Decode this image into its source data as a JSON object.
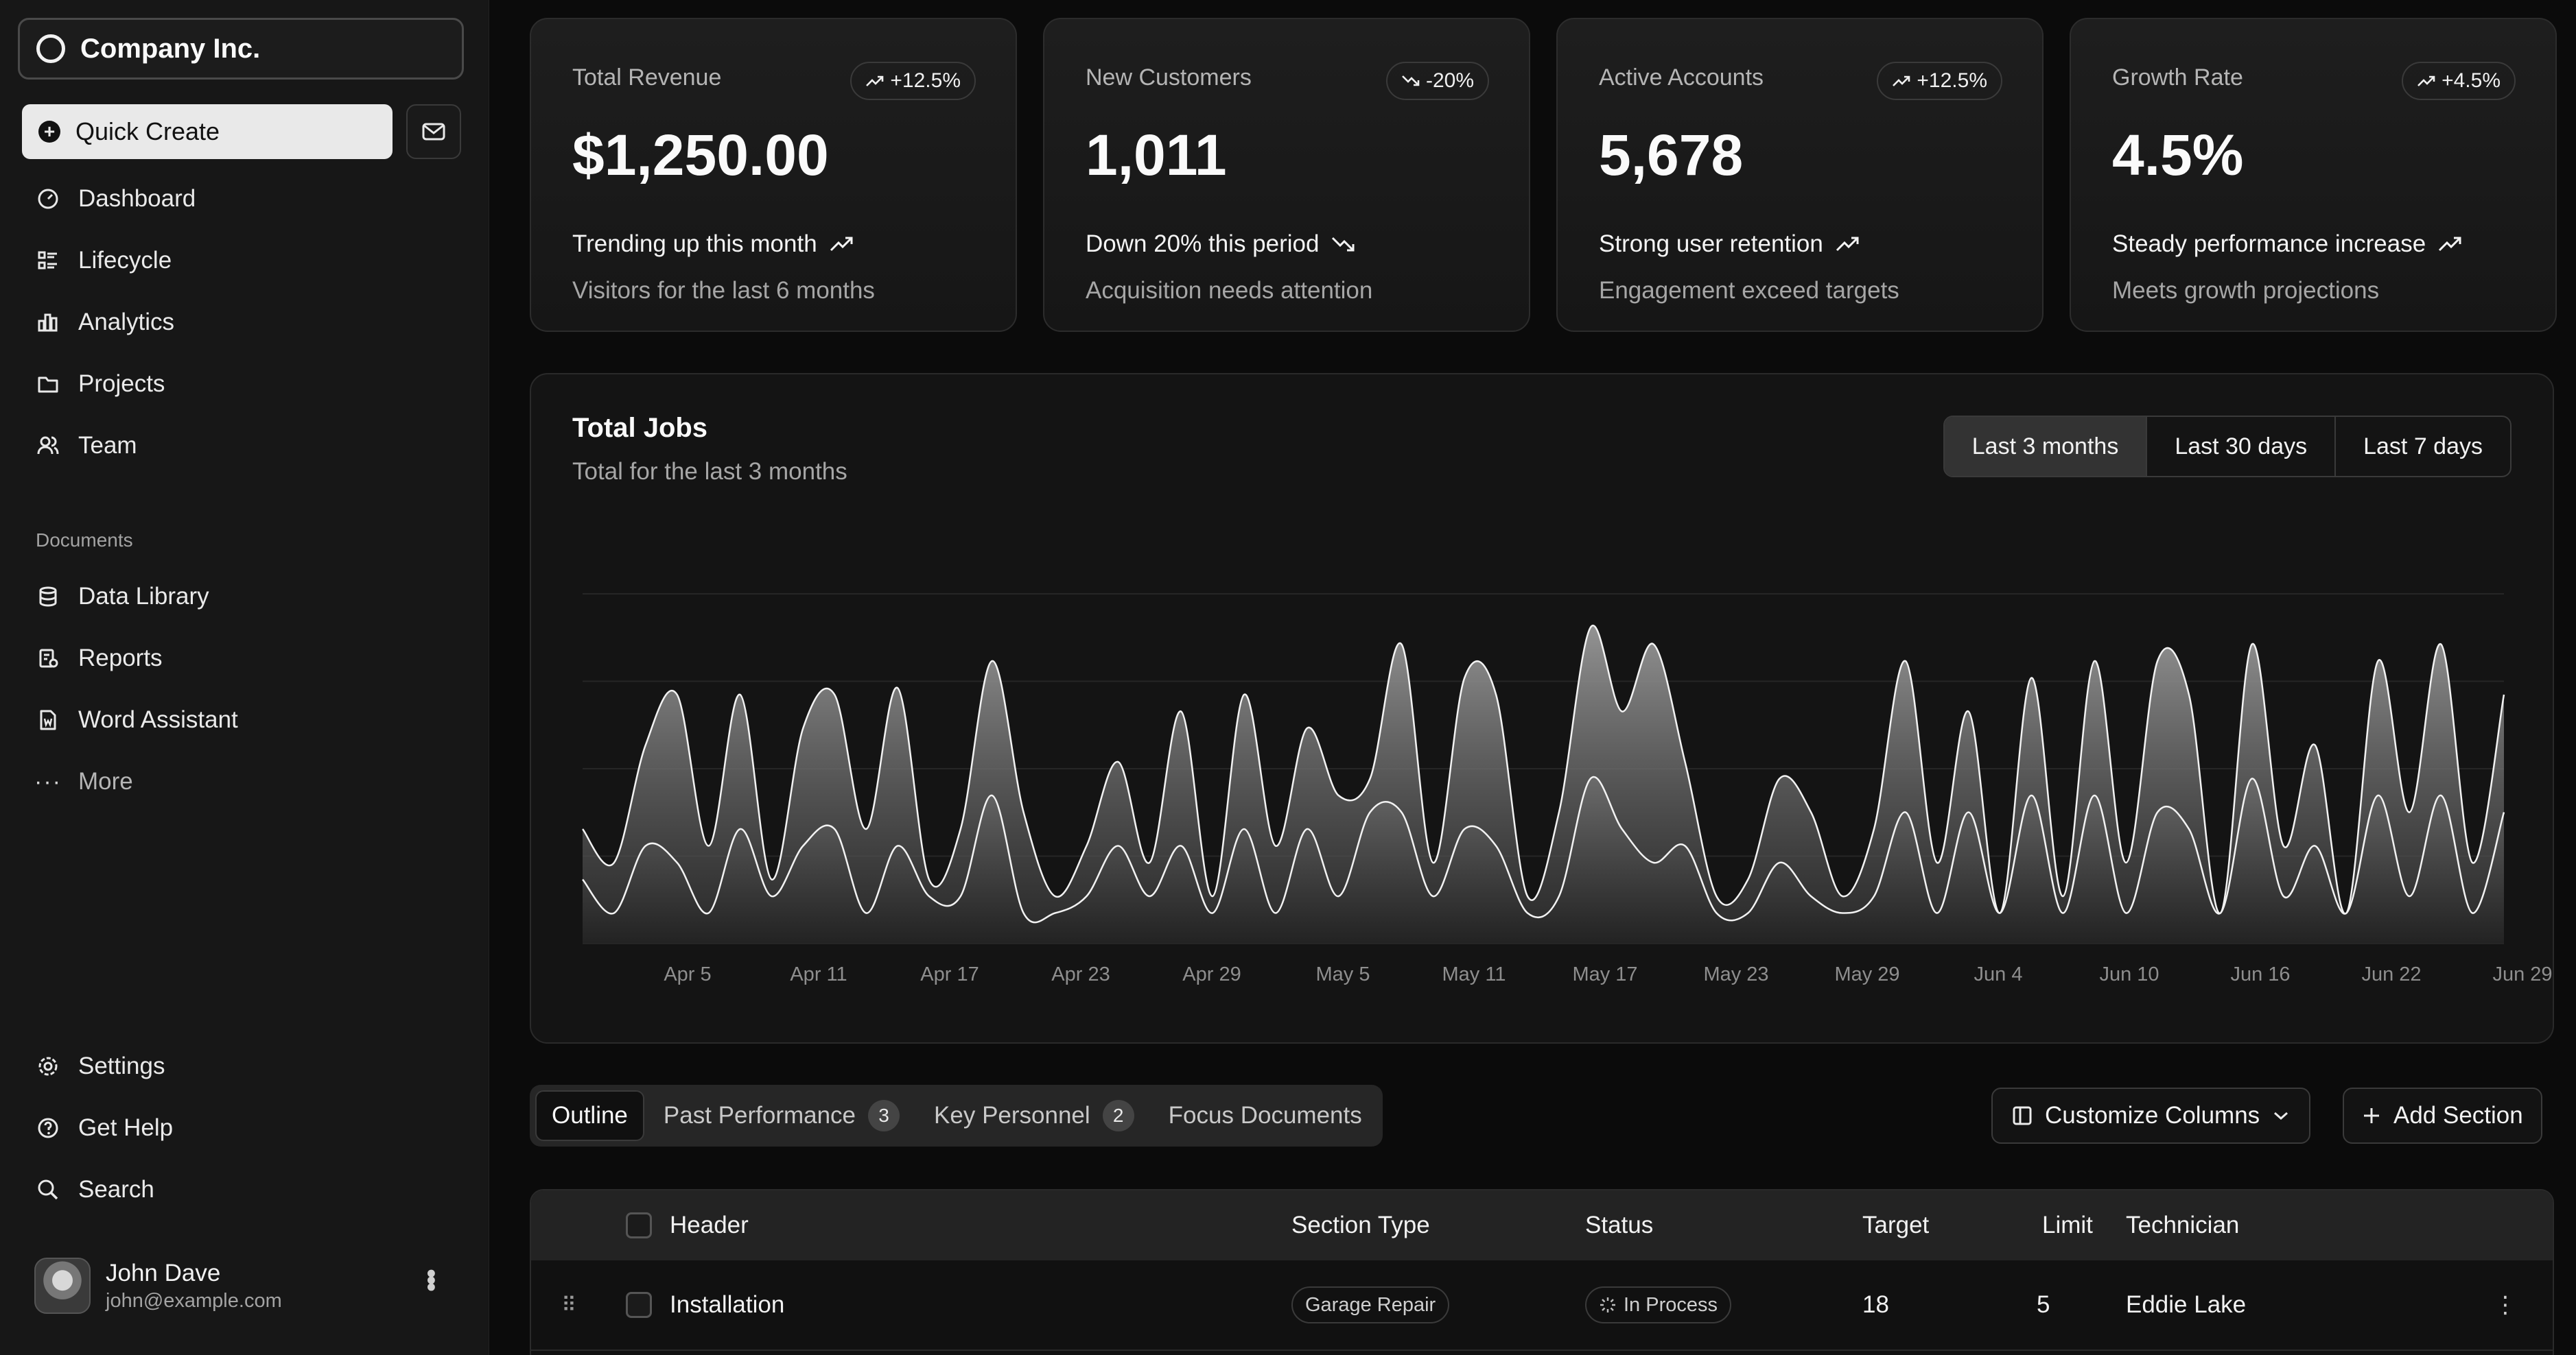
{
  "sidebar": {
    "company": "Company Inc.",
    "quick_create": "Quick Create",
    "nav": [
      {
        "label": "Dashboard",
        "icon": "gauge-icon"
      },
      {
        "label": "Lifecycle",
        "icon": "list-details-icon"
      },
      {
        "label": "Analytics",
        "icon": "chart-bar-icon"
      },
      {
        "label": "Projects",
        "icon": "folder-icon"
      },
      {
        "label": "Team",
        "icon": "users-icon"
      }
    ],
    "documents_heading": "Documents",
    "documents": [
      {
        "label": "Data Library",
        "icon": "database-icon"
      },
      {
        "label": "Reports",
        "icon": "report-icon"
      },
      {
        "label": "Word Assistant",
        "icon": "file-word-icon"
      },
      {
        "label": "More",
        "icon": "dots-icon"
      }
    ],
    "footer": [
      {
        "label": "Settings",
        "icon": "gear-icon"
      },
      {
        "label": "Get Help",
        "icon": "help-icon"
      },
      {
        "label": "Search",
        "icon": "search-icon"
      }
    ],
    "user": {
      "name": "John Dave",
      "email": "john@example.com"
    }
  },
  "cards": [
    {
      "label": "Total Revenue",
      "badge": "+12.5%",
      "badge_dir": "up",
      "value": "$1,250.00",
      "trend": "Trending up this month",
      "trend_dir": "up",
      "sub": "Visitors for the last 6 months"
    },
    {
      "label": "New Customers",
      "badge": "-20%",
      "badge_dir": "down",
      "value": "1,011",
      "trend": "Down 20% this period",
      "trend_dir": "down",
      "sub": "Acquisition needs attention"
    },
    {
      "label": "Active Accounts",
      "badge": "+12.5%",
      "badge_dir": "up",
      "value": "5,678",
      "trend": "Strong user retention",
      "trend_dir": "up",
      "sub": "Engagement exceed targets"
    },
    {
      "label": "Growth Rate",
      "badge": "+4.5%",
      "badge_dir": "up",
      "value": "4.5%",
      "trend": "Steady performance increase",
      "trend_dir": "up",
      "sub": "Meets growth projections"
    }
  ],
  "chart_panel": {
    "title": "Total Jobs",
    "subtitle": "Total for the last 3 months",
    "ranges": [
      "Last 3 months",
      "Last 30 days",
      "Last 7 days"
    ],
    "active_range": "Last 3 months"
  },
  "chart_data": {
    "type": "area",
    "x_ticks": [
      "Apr 5",
      "Apr 11",
      "Apr 17",
      "Apr 23",
      "Apr 29",
      "May 5",
      "May 11",
      "May 17",
      "May 23",
      "May 29",
      "Jun 4",
      "Jun 10",
      "Jun 16",
      "Jun 22",
      "Jun 29"
    ],
    "grid": true,
    "series": [
      {
        "values": [
          0.3,
          0.2,
          0.55,
          0.7,
          0.25,
          0.7,
          0.15,
          0.6,
          0.7,
          0.3,
          0.72,
          0.15,
          0.3,
          0.8,
          0.35,
          0.1,
          0.25,
          0.5,
          0.2,
          0.65,
          0.1,
          0.7,
          0.25,
          0.6,
          0.4,
          0.45,
          0.85,
          0.2,
          0.75,
          0.7,
          0.1,
          0.35,
          0.9,
          0.65,
          0.85,
          0.5,
          0.1,
          0.15,
          0.45,
          0.35,
          0.1,
          0.3,
          0.8,
          0.2,
          0.65,
          0.05,
          0.75,
          0.1,
          0.8,
          0.2,
          0.8,
          0.7,
          0.05,
          0.85,
          0.25,
          0.55,
          0.05,
          0.8,
          0.35,
          0.85,
          0.2,
          0.7
        ]
      },
      {
        "values": [
          0.15,
          0.05,
          0.25,
          0.2,
          0.05,
          0.3,
          0.1,
          0.25,
          0.3,
          0.05,
          0.25,
          0.1,
          0.1,
          0.4,
          0.05,
          0.05,
          0.1,
          0.25,
          0.1,
          0.25,
          0.05,
          0.3,
          0.05,
          0.3,
          0.1,
          0.35,
          0.35,
          0.1,
          0.3,
          0.25,
          0.05,
          0.1,
          0.45,
          0.3,
          0.2,
          0.25,
          0.05,
          0.05,
          0.2,
          0.1,
          0.05,
          0.1,
          0.35,
          0.05,
          0.35,
          0.05,
          0.4,
          0.05,
          0.4,
          0.05,
          0.35,
          0.3,
          0.05,
          0.45,
          0.1,
          0.25,
          0.05,
          0.4,
          0.1,
          0.4,
          0.05,
          0.35
        ]
      }
    ]
  },
  "tabs": [
    {
      "label": "Outline",
      "count": ""
    },
    {
      "label": "Past Performance",
      "count": "3"
    },
    {
      "label": "Key Personnel",
      "count": "2"
    },
    {
      "label": "Focus Documents",
      "count": ""
    }
  ],
  "actions": {
    "customize": "Customize Columns",
    "add_section": "Add Section"
  },
  "table": {
    "headers": [
      "Header",
      "Section Type",
      "Status",
      "Target",
      "Limit",
      "Technician"
    ],
    "rows": [
      {
        "header": "Installation",
        "section_type": "Garage Repair",
        "status": "In Process",
        "target": "18",
        "limit": "5",
        "technician": "Eddie Lake"
      }
    ]
  }
}
